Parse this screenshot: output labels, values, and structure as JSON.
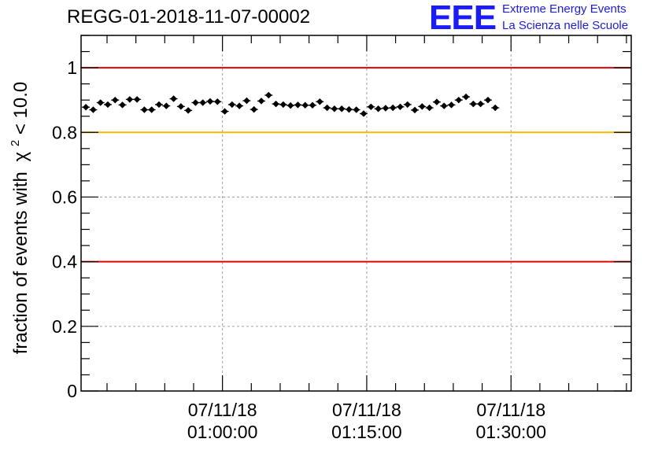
{
  "title": "REGG-01-2018-11-07-00002",
  "logo": {
    "mark": "EEE",
    "line1": "Extreme Energy Events",
    "line2": "La Scienza nelle Scuole",
    "color": "#1a1aff"
  },
  "chart_data": {
    "type": "scatter",
    "ylabel": "fraction of events with",
    "ylabel_symbol": "χ",
    "ylabel_exp": "2",
    "ylabel_cut": " < 10.0",
    "ylim": [
      0,
      1.1
    ],
    "yticks": [
      0,
      0.2,
      0.4,
      0.6,
      0.8,
      1
    ],
    "ytick_labels": [
      "0",
      "0.2",
      "0.4",
      "0.6",
      "0.8",
      "1"
    ],
    "xlim_minutes": [
      35.3,
      92.5
    ],
    "xticks_minutes": [
      50,
      65,
      80
    ],
    "xtick_date_labels": [
      "07/11/18",
      "07/11/18",
      "07/11/18"
    ],
    "xtick_time_labels": [
      "01:00:00",
      "01:15:00",
      "01:30:00"
    ],
    "grid": true,
    "reference_lines": [
      {
        "y": 1.0,
        "color": "#e00000"
      },
      {
        "y": 0.8,
        "color": "#f5b800"
      },
      {
        "y": 0.4,
        "color": "#e00000"
      }
    ],
    "series": [
      {
        "x_start_minutes": 35.8,
        "x_step_minutes": 0.76,
        "values": [
          0.878,
          0.87,
          0.892,
          0.886,
          0.9,
          0.885,
          0.902,
          0.902,
          0.87,
          0.87,
          0.886,
          0.882,
          0.904,
          0.88,
          0.868,
          0.892,
          0.892,
          0.896,
          0.895,
          0.865,
          0.886,
          0.882,
          0.898,
          0.871,
          0.897,
          0.915,
          0.888,
          0.886,
          0.883,
          0.885,
          0.884,
          0.884,
          0.895,
          0.876,
          0.873,
          0.873,
          0.871,
          0.87,
          0.858,
          0.879,
          0.873,
          0.875,
          0.876,
          0.879,
          0.886,
          0.869,
          0.88,
          0.876,
          0.894,
          0.882,
          0.885,
          0.9,
          0.91,
          0.888,
          0.888,
          0.9,
          0.876
        ],
        "error": 0.006,
        "color": "#000000"
      }
    ]
  }
}
